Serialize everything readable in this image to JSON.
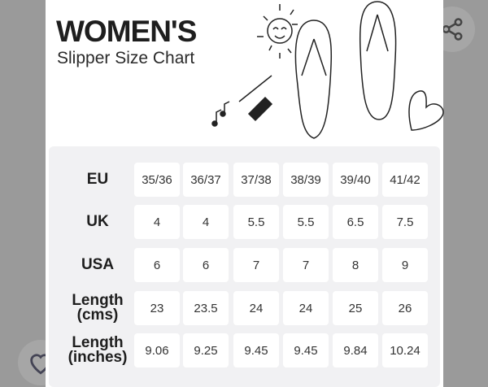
{
  "header": {
    "title": "WOMEN'S",
    "subtitle": "Slipper Size Chart"
  },
  "actions": {
    "share_icon": "share-icon",
    "favorite_icon": "heart-outline-icon"
  },
  "size_table": {
    "rows": [
      {
        "label": "EU",
        "values": [
          "35/36",
          "36/37",
          "37/38",
          "38/39",
          "39/40",
          "41/42"
        ]
      },
      {
        "label": "UK",
        "values": [
          "4",
          "4",
          "5.5",
          "5.5",
          "6.5",
          "7.5"
        ]
      },
      {
        "label": "USA",
        "values": [
          "6",
          "6",
          "7",
          "7",
          "8",
          "9"
        ]
      },
      {
        "label": "Length (cms)",
        "values": [
          "23",
          "23.5",
          "24",
          "24",
          "25",
          "26"
        ]
      },
      {
        "label": "Length (inches)",
        "values": [
          "9.06",
          "9.25",
          "9.45",
          "9.45",
          "9.84",
          "10.24"
        ]
      }
    ]
  }
}
